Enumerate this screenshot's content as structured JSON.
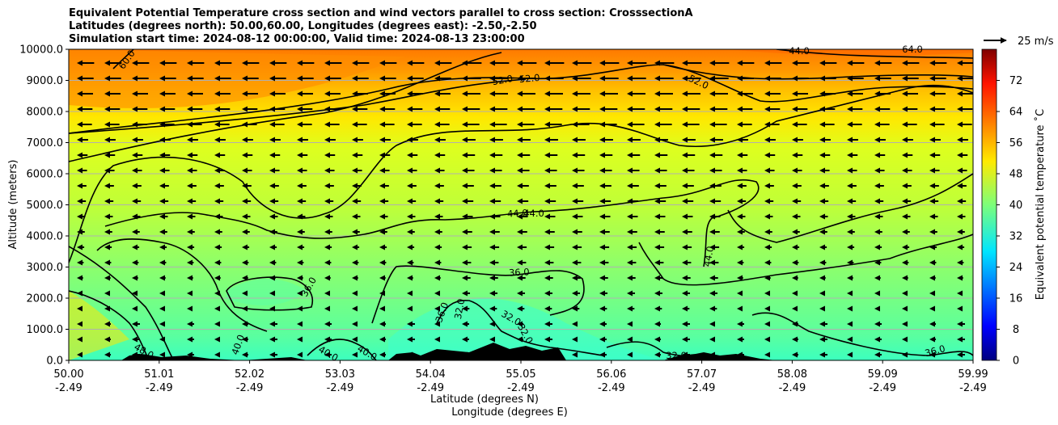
{
  "title_lines": [
    "Equivalent Potential Temperature cross section and wind vectors parallel to cross section: CrosssectionA",
    "Latitudes (degrees north): 50.00,60.00, Longitudes (degrees east): -2.50,-2.50",
    "Simulation start time: 2024-08-12 00:00:00, Valid time: 2024-08-13 23:00:00"
  ],
  "chart_data": {
    "type": "heatmap",
    "xlabel": "Latitude (degrees N)",
    "xlabel2": "Longitude (degrees E)",
    "ylabel": "Altitude (meters)",
    "ylim": [
      0,
      10000
    ],
    "y_ticks": [
      "0.0",
      "1000.0",
      "2000.0",
      "3000.0",
      "4000.0",
      "5000.0",
      "6000.0",
      "7000.0",
      "8000.0",
      "9000.0",
      "10000.0"
    ],
    "y_tick_values": [
      0,
      1000,
      2000,
      3000,
      4000,
      5000,
      6000,
      7000,
      8000,
      9000,
      10000
    ],
    "x_ticks": [
      {
        "lat": "50.00",
        "lon": "-2.49"
      },
      {
        "lat": "51.01",
        "lon": "-2.49"
      },
      {
        "lat": "52.02",
        "lon": "-2.49"
      },
      {
        "lat": "53.03",
        "lon": "-2.49"
      },
      {
        "lat": "54.04",
        "lon": "-2.49"
      },
      {
        "lat": "55.05",
        "lon": "-2.49"
      },
      {
        "lat": "56.06",
        "lon": "-2.49"
      },
      {
        "lat": "57.07",
        "lon": "-2.49"
      },
      {
        "lat": "58.08",
        "lon": "-2.49"
      },
      {
        "lat": "59.09",
        "lon": "-2.49"
      },
      {
        "lat": "59.99",
        "lon": "-2.49"
      }
    ],
    "grid": "horizontal",
    "colorbar": {
      "label": "Equivalent potential temperature ˚C",
      "ticks": [
        "0",
        "8",
        "16",
        "24",
        "32",
        "40",
        "48",
        "56",
        "64",
        "72"
      ],
      "min": 0,
      "max": 80,
      "colormap": "jet"
    },
    "quiver_key": "25 m/s",
    "contour_labels": [
      "60.0",
      "52.0",
      "52.0",
      "52.0",
      "44.0",
      "44.0",
      "44.0",
      "44.0",
      "36.0",
      "36.0",
      "36.0",
      "32.0",
      "32.0",
      "32.0",
      "32.0",
      "40.0",
      "40.0",
      "40.0",
      "48.0",
      "36.0",
      "60.0",
      "64.0"
    ],
    "theta_e_profile": [
      {
        "altitude": 0,
        "value": 36
      },
      {
        "altitude": 1000,
        "value": 38
      },
      {
        "altitude": 2000,
        "value": 38
      },
      {
        "altitude": 3000,
        "value": 40
      },
      {
        "altitude": 4000,
        "value": 42
      },
      {
        "altitude": 5000,
        "value": 44
      },
      {
        "altitude": 6000,
        "value": 47
      },
      {
        "altitude": 7000,
        "value": 50
      },
      {
        "altitude": 8000,
        "value": 52
      },
      {
        "altitude": 9000,
        "value": 55
      },
      {
        "altitude": 10000,
        "value": 60
      }
    ]
  }
}
